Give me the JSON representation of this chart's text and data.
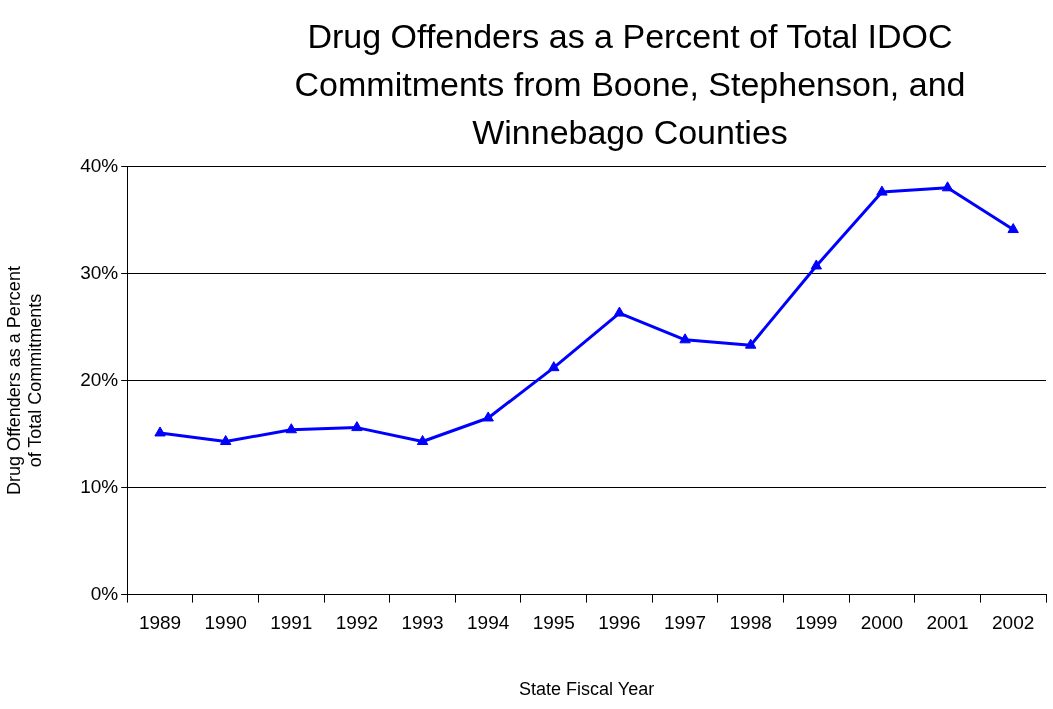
{
  "chart_data": {
    "type": "line",
    "title": "Drug Offenders as a Percent of Total IDOC Commitments from Boone, Stephenson, and Winnebago Counties",
    "xlabel": "State Fiscal Year",
    "ylabel": "Drug Offenders as a Percent of Total Commitments",
    "categories": [
      "1989",
      "1990",
      "1991",
      "1992",
      "1993",
      "1994",
      "1995",
      "1996",
      "1997",
      "1998",
      "1999",
      "2000",
      "2001",
      "2002"
    ],
    "series": [
      {
        "color": "#0000ff",
        "values": [
          15.1,
          14.3,
          15.4,
          15.6,
          14.3,
          16.5,
          21.2,
          26.3,
          23.8,
          23.3,
          30.7,
          37.6,
          38.0,
          34.1
        ]
      }
    ],
    "ylim": [
      0,
      40
    ],
    "yticks": [
      {
        "value": 0,
        "label": "0%"
      },
      {
        "value": 10,
        "label": "10%"
      },
      {
        "value": 20,
        "label": "20%"
      },
      {
        "value": 30,
        "label": "30%"
      },
      {
        "value": 40,
        "label": "40%"
      }
    ],
    "grid": "y",
    "legend": false,
    "marker": "triangle",
    "line_style": "solid"
  }
}
